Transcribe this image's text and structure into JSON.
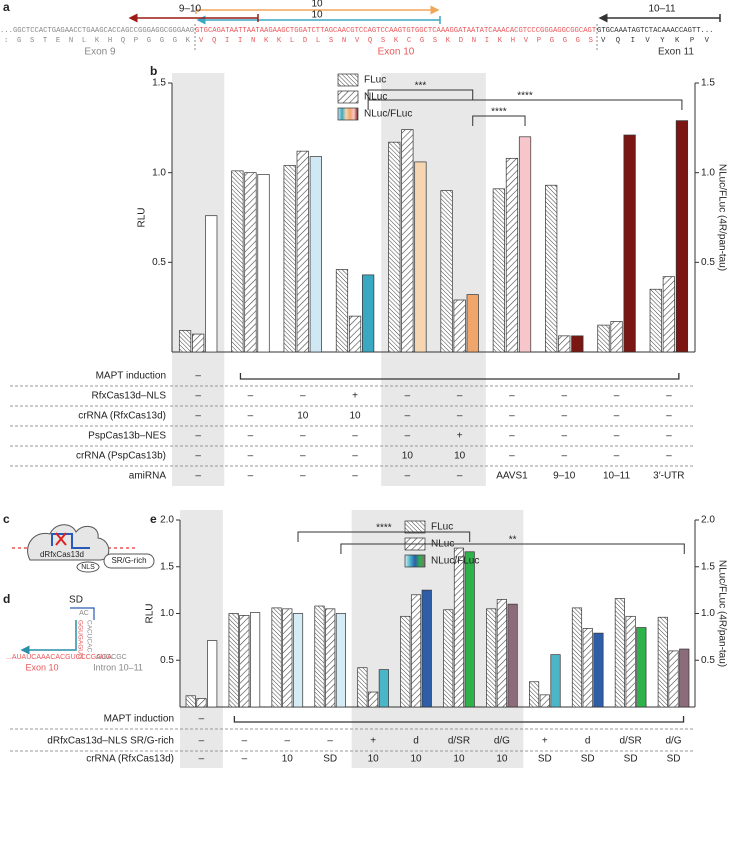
{
  "panel_labels": [
    "a",
    "b",
    "c",
    "d",
    "e"
  ],
  "panel_a": {
    "dna": [
      "...GGCTCCACTGAGAACCTGAAGCACCAGCCGGGAGGCGGGAAG",
      "GTGCAGATAATTAATAAGAAGCTGGATCTTAGCAACGTCCAGTCCAAGTGTGGCTCAAAGGATAATATCAAACACGTCCCGGGAGGCGGCAGT",
      "GTGCAAATAGTCTACAAACCAGTT..."
    ],
    "protein": [
      ": G S T E N L K H Q P G G G K",
      "V Q I I N K K L D L S N V Q S K C G S K D N I K H V P G G G S",
      "V Q I V Y K P V"
    ],
    "exons": [
      "Exon 9",
      "Exon 10",
      "Exon 11"
    ],
    "targets": [
      "9–10",
      "10",
      "10",
      "10–11"
    ]
  },
  "panel_c": {
    "labels": [
      "dRfxCas13d",
      "NLS",
      "SR/G-rich"
    ]
  },
  "panel_d": {
    "sd": "SD",
    "loop": "AC",
    "stem_left": "GGUGAGUG",
    "stem_right": "CACUCAC",
    "exon_seq": "...AUAUCAAACACGUCCCGGGA",
    "intron_seq": "AUGCGC",
    "exon": "Exon 10",
    "intron": "Intron 10–11"
  },
  "chart_data": [
    {
      "type": "bar",
      "ylabel": "RLU",
      "y2label": "NLuc/FLuc (4R/pan-tau)",
      "ylim": [
        0,
        1.5
      ],
      "yticks": [
        0.5,
        {
          "value": 1,
          "label": "1.0"
        },
        1.5
      ],
      "y2lim": [
        0,
        1.5
      ],
      "y2ticks": [
        0.5,
        {
          "value": 1,
          "label": "1.0"
        },
        1.5
      ],
      "legend": "upper center",
      "series": [
        {
          "name": "FLuc",
          "hatch": "backslash",
          "values": [
            0.12,
            1.01,
            1.04,
            0.46,
            1.17,
            0.9,
            0.91,
            0.93,
            0.15,
            0.35
          ]
        },
        {
          "name": "NLuc",
          "hatch": "slash",
          "values": [
            0.1,
            1.0,
            1.12,
            0.2,
            1.24,
            0.29,
            1.08,
            0.09,
            0.17,
            0.42
          ]
        },
        {
          "name": "NLuc/FLuc",
          "axis": "y2",
          "colors": [
            "#ffffff",
            "#ffffff",
            "#cfe8f3",
            "#3aa8c1",
            "#f6d6b0",
            "#f0a56a",
            "#f7c6ca",
            "#7a1712",
            "#7a1712",
            "#7a1712"
          ],
          "values": [
            0.76,
            0.99,
            1.09,
            0.43,
            1.06,
            0.32,
            1.2,
            0.09,
            1.21,
            1.29
          ]
        }
      ],
      "annotations": [
        "***",
        "****",
        "****"
      ],
      "table": [
        {
          "label": "MAPT induction",
          "cells": [
            "–"
          ]
        },
        {
          "label": "RfxCas13d–NLS",
          "cells": [
            "–",
            "–",
            "–",
            "+",
            "–",
            "–",
            "–",
            "–",
            "–",
            "–"
          ]
        },
        {
          "label": "crRNA (RfxCas13d)",
          "cells": [
            "–",
            "–",
            "10",
            "10",
            "–",
            "–",
            "–",
            "–",
            "–",
            "–"
          ]
        },
        {
          "label": "PspCas13b–NES",
          "cells": [
            "–",
            "–",
            "–",
            "–",
            "–",
            "+",
            "–",
            "–",
            "–",
            "–"
          ]
        },
        {
          "label": "crRNA (PspCas13b)",
          "cells": [
            "–",
            "–",
            "–",
            "–",
            "10",
            "10",
            "–",
            "–",
            "–",
            "–"
          ]
        },
        {
          "label": "amiRNA",
          "cells": [
            "–",
            "–",
            "–",
            "–",
            "–",
            "–",
            "AAVS1",
            "9–10",
            "10–11",
            "3′-UTR"
          ]
        }
      ]
    },
    {
      "type": "bar",
      "ylabel": "RLU",
      "y2label": "NLuc/FLuc (4R/pan-tau)",
      "ylim": [
        0,
        2
      ],
      "yticks": [
        0.5,
        {
          "value": 1,
          "label": "1.0"
        },
        1.5,
        {
          "value": 2,
          "label": "2.0"
        }
      ],
      "y2lim": [
        0,
        2
      ],
      "y2ticks": [
        0.5,
        {
          "value": 1,
          "label": "1.0"
        },
        1.5,
        {
          "value": 2,
          "label": "2.0"
        }
      ],
      "legend": "upper center",
      "series": [
        {
          "name": "FLuc",
          "hatch": "backslash",
          "values": [
            0.12,
            1.0,
            1.06,
            1.08,
            0.42,
            0.97,
            1.04,
            1.05,
            0.27,
            1.06,
            1.16,
            0.96
          ]
        },
        {
          "name": "NLuc",
          "hatch": "slash",
          "values": [
            0.09,
            0.98,
            1.05,
            1.05,
            0.16,
            1.2,
            1.7,
            1.15,
            0.13,
            0.84,
            0.97,
            0.6
          ]
        },
        {
          "name": "NLuc/FLuc",
          "axis": "y2",
          "colors": [
            "#ffffff",
            "#ffffff",
            "#d6ecf5",
            "#d6ecf5",
            "#4bb6c8",
            "#2f5ea8",
            "#2eb24a",
            "#8c6b7b",
            "#4bb6c8",
            "#2f5ea8",
            "#2eb24a",
            "#8c6b7b"
          ],
          "values": [
            0.71,
            1.01,
            1.0,
            1.0,
            0.4,
            1.25,
            1.66,
            1.1,
            0.56,
            0.79,
            0.85,
            0.62
          ]
        }
      ],
      "annotations": [
        "****",
        "**"
      ],
      "table": [
        {
          "label": "MAPT induction",
          "cells": [
            "–"
          ]
        },
        {
          "label": "dRfxCas13d–NLS SR/G-rich",
          "cells": [
            "–",
            "–",
            "–",
            "–",
            "+",
            "d",
            "d/SR",
            "d/G",
            "+",
            "d",
            "d/SR",
            "d/G"
          ]
        },
        {
          "label": "crRNA (RfxCas13d)",
          "cells": [
            "–",
            "–",
            "10",
            "SD",
            "10",
            "10",
            "10",
            "10",
            "SD",
            "SD",
            "SD",
            "SD"
          ]
        }
      ]
    }
  ]
}
